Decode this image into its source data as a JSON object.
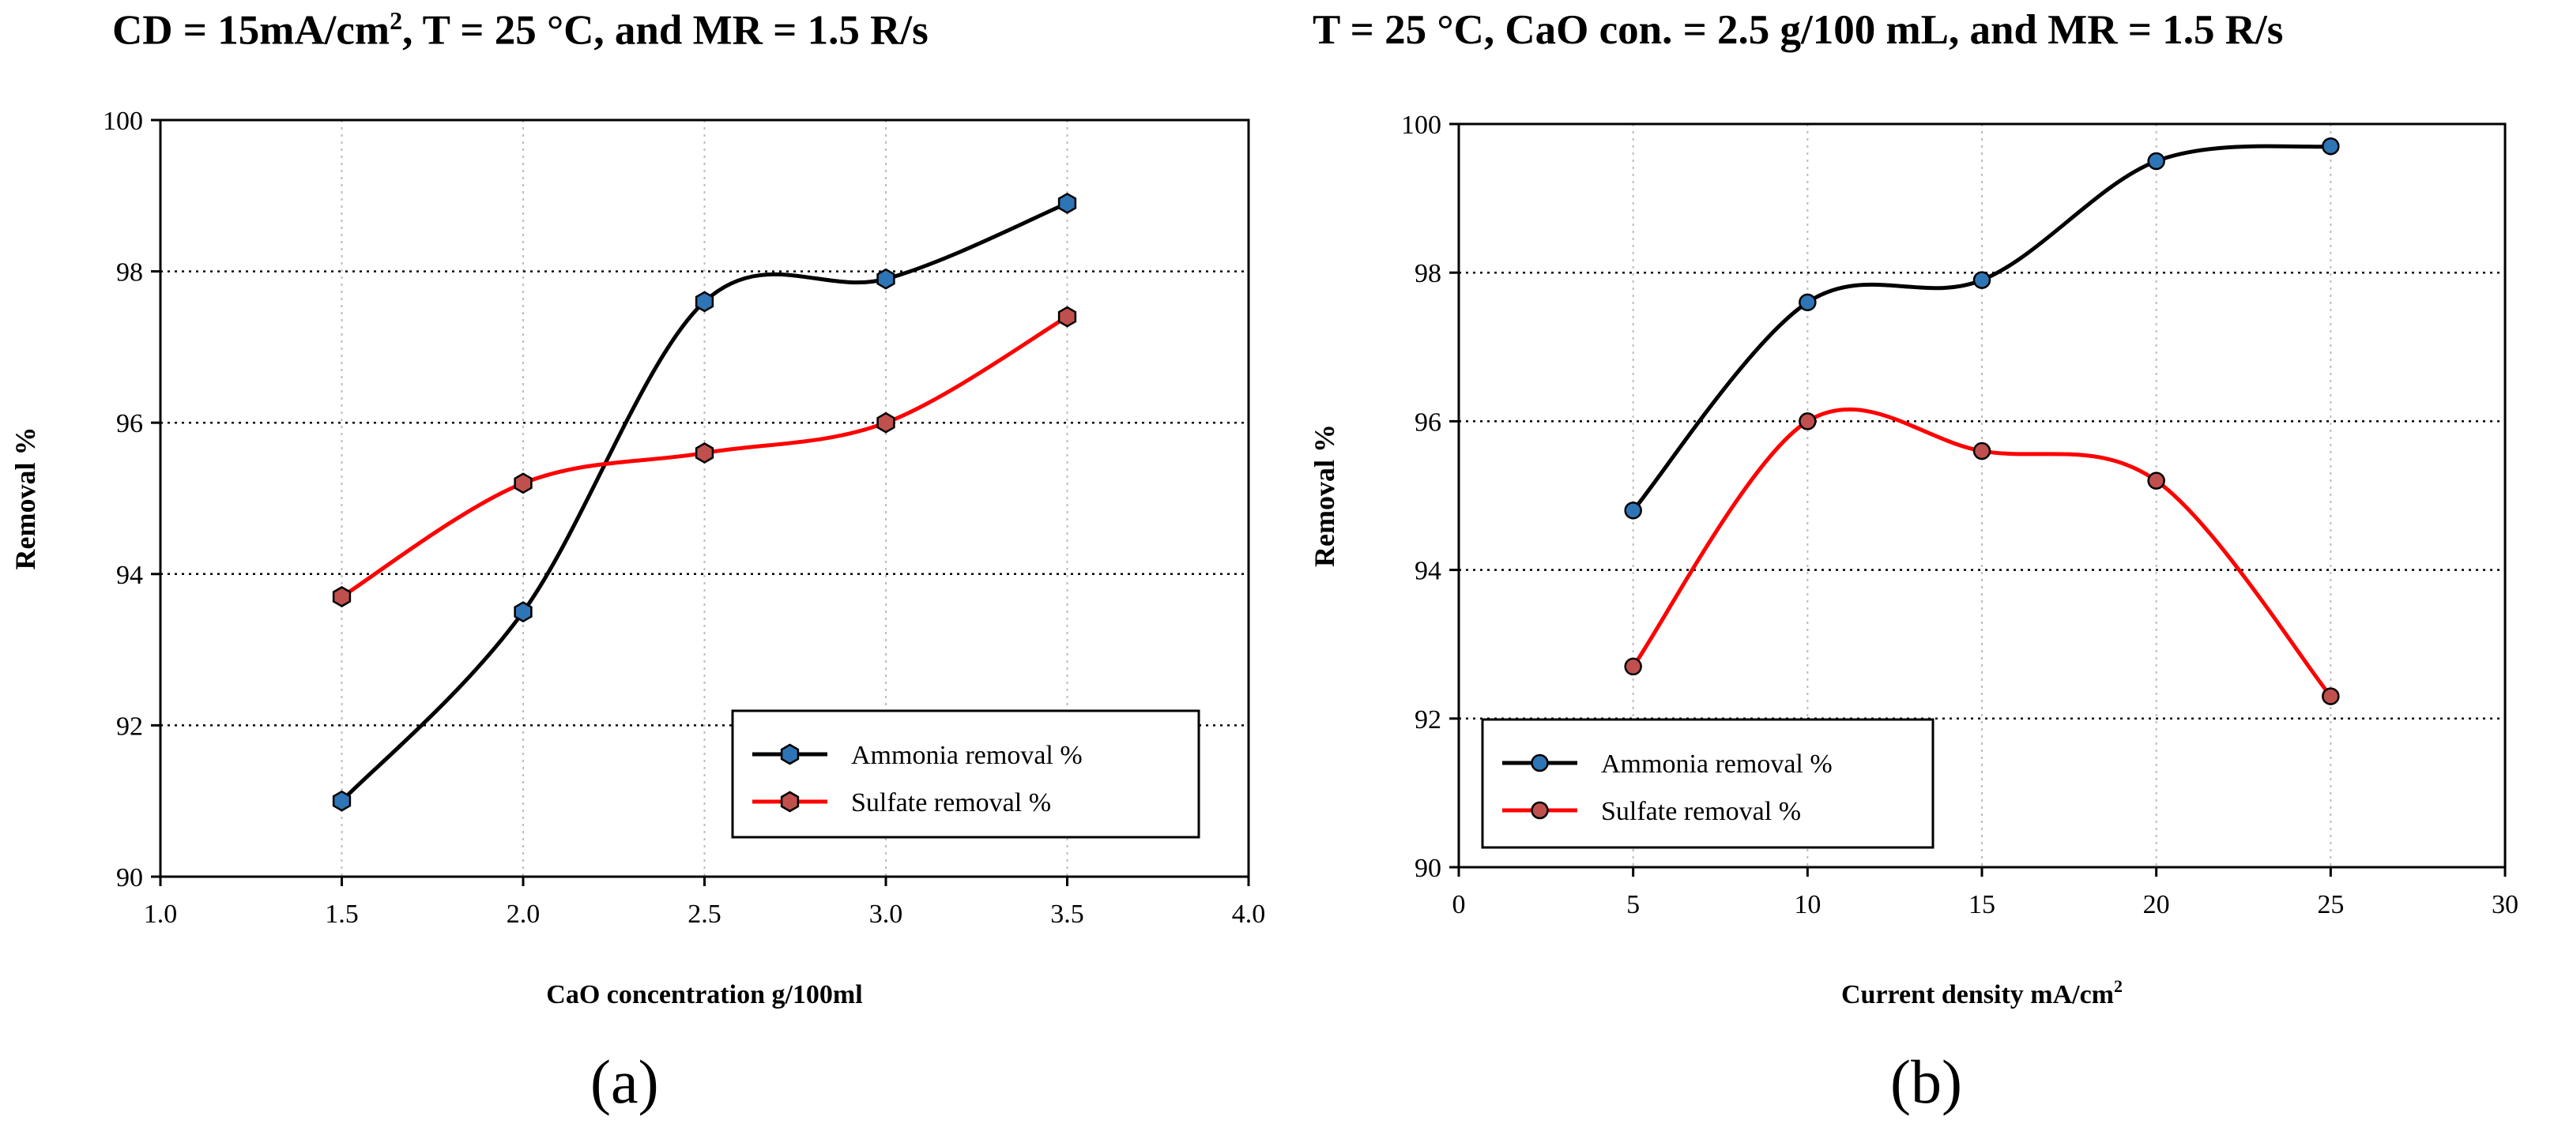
{
  "chart_data": [
    {
      "type": "line",
      "panel_label": "(a)",
      "title_parts": [
        "CD = 15mA/cm",
        "2",
        ", T = 25 °C, and MR = 1.5 R/s"
      ],
      "xlabel": "CaO concentration g/100ml",
      "ylabel": "Removal %",
      "xlim": [
        1.0,
        4.0
      ],
      "ylim": [
        90,
        100
      ],
      "x_ticks": [
        1.0,
        1.5,
        2.0,
        2.5,
        3.0,
        3.5,
        4.0
      ],
      "x_tick_labels": [
        "1.0",
        "1.5",
        "2.0",
        "2.5",
        "3.0",
        "3.5",
        "4.0"
      ],
      "y_ticks": [
        90,
        92,
        94,
        96,
        98,
        100
      ],
      "y_tick_labels": [
        "90",
        "92",
        "94",
        "96",
        "98",
        "100"
      ],
      "grid": true,
      "legend_position": "bottom-right",
      "marker": "hexagon",
      "x": [
        1.5,
        2.0,
        2.5,
        3.0,
        3.5
      ],
      "series": [
        {
          "name": "Ammonia removal %",
          "values": [
            91.0,
            93.5,
            97.6,
            97.9,
            98.9
          ],
          "line_color": "#000000",
          "marker_color": "#2e75b6"
        },
        {
          "name": "Sulfate removal %",
          "values": [
            93.7,
            95.2,
            95.6,
            96.0,
            97.4
          ],
          "line_color": "#ff0000",
          "marker_color": "#c0504d"
        }
      ]
    },
    {
      "type": "line",
      "panel_label": "(b)",
      "title_parts": [
        "T = 25 °C, CaO con. = 2.5 g/100 mL, and MR = 1.5 R/s"
      ],
      "xlabel": "Current density mA/cm",
      "xlabel_sup": "2",
      "ylabel": "Removal %",
      "xlim": [
        0,
        30
      ],
      "ylim": [
        90,
        100
      ],
      "x_ticks": [
        0,
        5,
        10,
        15,
        20,
        25,
        30
      ],
      "x_tick_labels": [
        "0",
        "5",
        "10",
        "15",
        "20",
        "25",
        "30"
      ],
      "y_ticks": [
        90,
        92,
        94,
        96,
        98,
        100
      ],
      "y_tick_labels": [
        "90",
        "92",
        "94",
        "96",
        "98",
        "100"
      ],
      "grid": true,
      "legend_position": "bottom-left",
      "marker": "circle",
      "x": [
        5,
        10,
        15,
        20,
        25
      ],
      "series": [
        {
          "name": "Ammonia removal %",
          "values": [
            94.8,
            97.6,
            97.9,
            99.5,
            99.7
          ],
          "line_color": "#000000",
          "marker_color": "#2e75b6"
        },
        {
          "name": "Sulfate removal %",
          "values": [
            92.7,
            96.0,
            95.6,
            95.2,
            92.3
          ],
          "line_color": "#ff0000",
          "marker_color": "#c0504d"
        }
      ]
    }
  ]
}
